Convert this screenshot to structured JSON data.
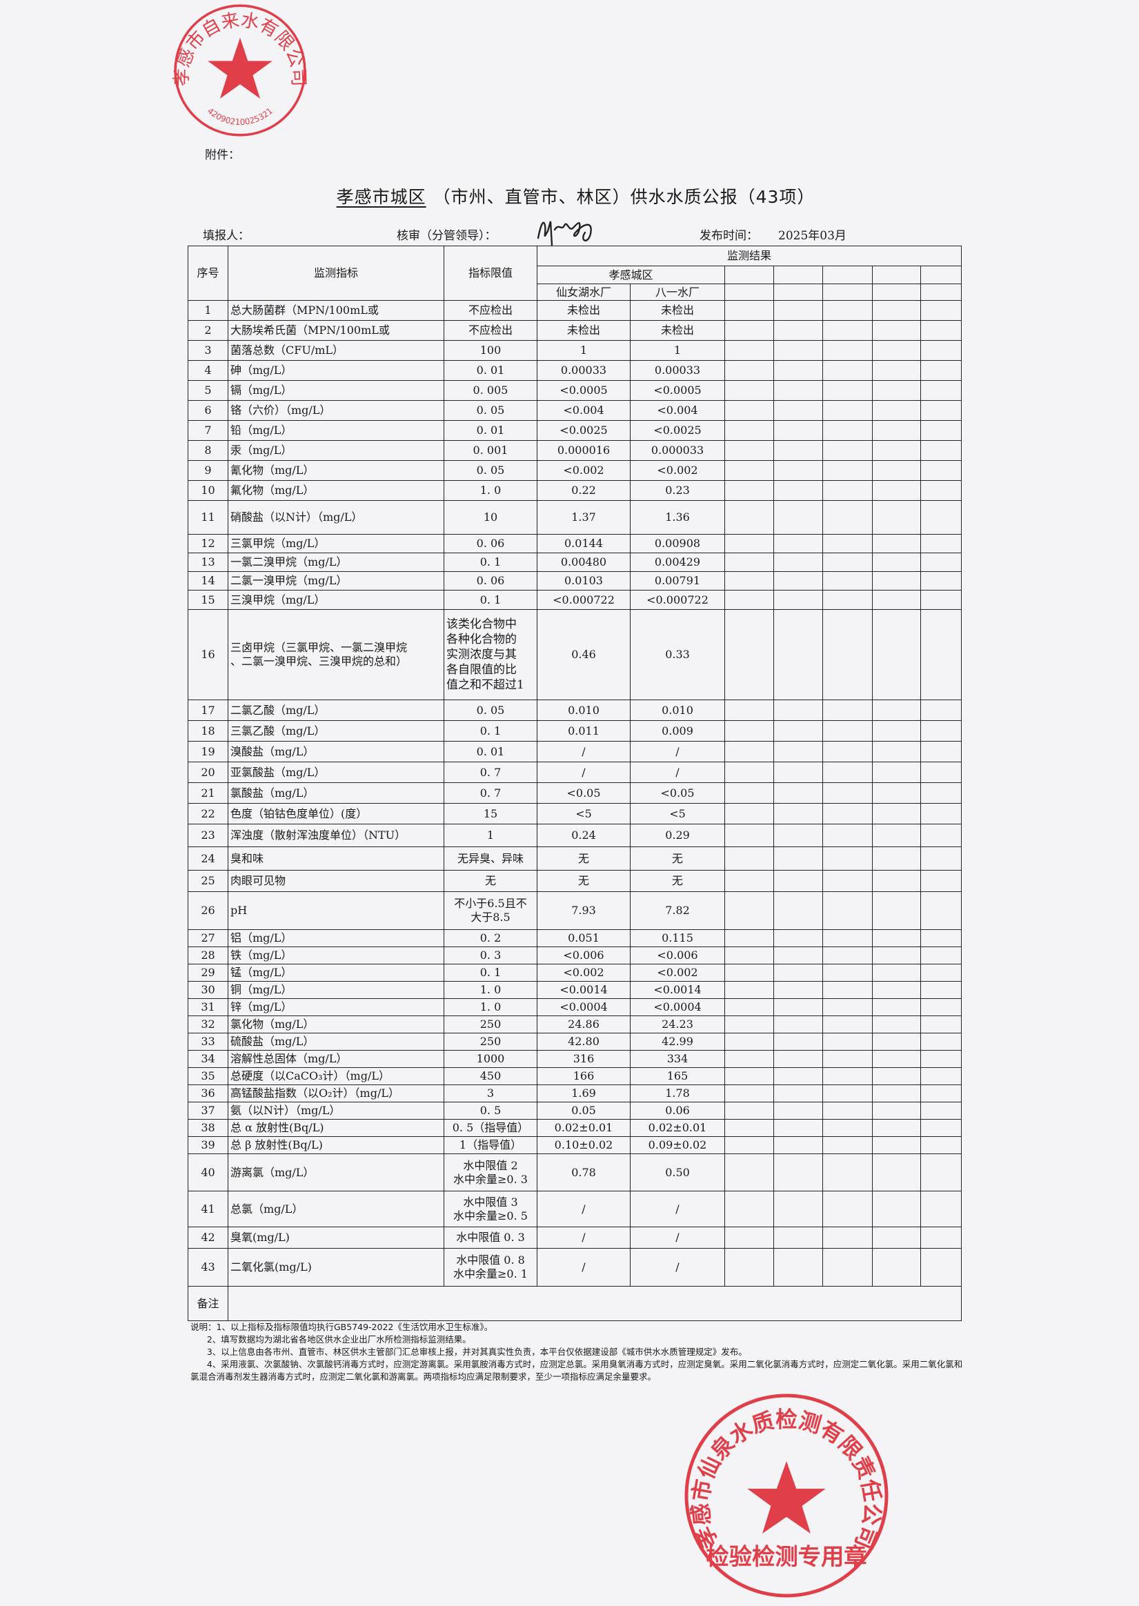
{
  "attachment_label": "附件：",
  "title": {
    "region": "孝感市城区",
    "rest": "（市州、直管市、林区）供水水质公报（43项）"
  },
  "meta": {
    "reporter_label": "填报人：",
    "reviewer_label": "核审（分管领导）：",
    "publish_label": "发布时间：",
    "publish_date": "2025年03月"
  },
  "table": {
    "headers": {
      "seq": "序号",
      "indicator": "监测指标",
      "limit": "指标限值",
      "results": "监测结果",
      "area": "孝感城区",
      "plants": [
        "仙女湖水厂",
        "八一水厂"
      ]
    },
    "rows": [
      {
        "no": "1",
        "indicator": "总大肠菌群（MPN/100mL或",
        "limit": "不应检出",
        "v1": "未检出",
        "v2": "未检出"
      },
      {
        "no": "2",
        "indicator": "大肠埃希氏菌（MPN/100mL或",
        "limit": "不应检出",
        "v1": "未检出",
        "v2": "未检出"
      },
      {
        "no": "3",
        "indicator": "菌落总数（CFU/mL）",
        "limit": "100",
        "v1": "1",
        "v2": "1"
      },
      {
        "no": "4",
        "indicator": "砷（mg/L）",
        "limit": "0. 01",
        "v1": "0.00033",
        "v2": "0.00033"
      },
      {
        "no": "5",
        "indicator": "镉（mg/L）",
        "limit": "0. 005",
        "v1": "<0.0005",
        "v2": "<0.0005"
      },
      {
        "no": "6",
        "indicator": "铬（六价）（mg/L）",
        "limit": "0. 05",
        "v1": "<0.004",
        "v2": "<0.004"
      },
      {
        "no": "7",
        "indicator": "铅（mg/L）",
        "limit": "0. 01",
        "v1": "<0.0025",
        "v2": "<0.0025"
      },
      {
        "no": "8",
        "indicator": "汞（mg/L）",
        "limit": "0. 001",
        "v1": "0.000016",
        "v2": "0.000033"
      },
      {
        "no": "9",
        "indicator": "氰化物（mg/L）",
        "limit": "0. 05",
        "v1": "<0.002",
        "v2": "<0.002"
      },
      {
        "no": "10",
        "indicator": "氟化物（mg/L）",
        "limit": "1. 0",
        "v1": "0.22",
        "v2": "0.23"
      },
      {
        "no": "11",
        "indicator": "硝酸盐（以N计）（mg/L）",
        "limit": "10",
        "v1": "1.37",
        "v2": "1.36"
      },
      {
        "no": "12",
        "indicator": "三氯甲烷（mg/L）",
        "limit": "0. 06",
        "v1": "0.0144",
        "v2": "0.00908"
      },
      {
        "no": "13",
        "indicator": "一氯二溴甲烷（mg/L）",
        "limit": "0. 1",
        "v1": "0.00480",
        "v2": "0.00429"
      },
      {
        "no": "14",
        "indicator": "二氯一溴甲烷（mg/L）",
        "limit": "0. 06",
        "v1": "0.0103",
        "v2": "0.00791"
      },
      {
        "no": "15",
        "indicator": "三溴甲烷（mg/L）",
        "limit": "0. 1",
        "v1": "<0.000722",
        "v2": "<0.000722"
      },
      {
        "no": "16",
        "indicator": "三卤甲烷（三氯甲烷、一氯二溴甲烷\n、二氯一溴甲烷、三溴甲烷的总和）",
        "limit": "该类化合物中\n各种化合物的\n实测浓度与其\n各自限值的比\n值之和不超过1",
        "v1": "0.46",
        "v2": "0.33"
      },
      {
        "no": "17",
        "indicator": "二氯乙酸（mg/L）",
        "limit": "0. 05",
        "v1": "0.010",
        "v2": "0.010"
      },
      {
        "no": "18",
        "indicator": "三氯乙酸（mg/L）",
        "limit": "0. 1",
        "v1": "0.011",
        "v2": "0.009"
      },
      {
        "no": "19",
        "indicator": "溴酸盐（mg/L）",
        "limit": "0. 01",
        "v1": "/",
        "v2": "/"
      },
      {
        "no": "20",
        "indicator": "亚氯酸盐（mg/L）",
        "limit": "0. 7",
        "v1": "/",
        "v2": "/"
      },
      {
        "no": "21",
        "indicator": "氯酸盐（mg/L）",
        "limit": "0. 7",
        "v1": "<0.05",
        "v2": "<0.05"
      },
      {
        "no": "22",
        "indicator": "色度（铂钴色度单位）(度）",
        "limit": "15",
        "v1": "<5",
        "v2": "<5"
      },
      {
        "no": "23",
        "indicator": "浑浊度（散射浑浊度单位）（NTU）",
        "limit": "1",
        "v1": "0.24",
        "v2": "0.29"
      },
      {
        "no": "24",
        "indicator": "臭和味",
        "limit": "无异臭、异味",
        "v1": "无",
        "v2": "无"
      },
      {
        "no": "25",
        "indicator": "肉眼可见物",
        "limit": "无",
        "v1": "无",
        "v2": "无"
      },
      {
        "no": "26",
        "indicator": "pH",
        "limit": "不小于6.5且不\n大于8.5",
        "v1": "7.93",
        "v2": "7.82"
      },
      {
        "no": "27",
        "indicator": "铝（mg/L）",
        "limit": "0. 2",
        "v1": "0.051",
        "v2": "0.115"
      },
      {
        "no": "28",
        "indicator": "铁（mg/L）",
        "limit": "0. 3",
        "v1": "<0.006",
        "v2": "<0.006"
      },
      {
        "no": "29",
        "indicator": "锰（mg/L）",
        "limit": "0. 1",
        "v1": "<0.002",
        "v2": "<0.002"
      },
      {
        "no": "30",
        "indicator": "铜（mg/L）",
        "limit": "1. 0",
        "v1": "<0.0014",
        "v2": "<0.0014"
      },
      {
        "no": "31",
        "indicator": "锌（mg/L）",
        "limit": "1. 0",
        "v1": "<0.0004",
        "v2": "<0.0004"
      },
      {
        "no": "32",
        "indicator": "氯化物（mg/L）",
        "limit": "250",
        "v1": "24.86",
        "v2": "24.23"
      },
      {
        "no": "33",
        "indicator": "硫酸盐（mg/L）",
        "limit": "250",
        "v1": "42.80",
        "v2": "42.99"
      },
      {
        "no": "34",
        "indicator": "溶解性总固体（mg/L）",
        "limit": "1000",
        "v1": "316",
        "v2": "334"
      },
      {
        "no": "35",
        "indicator": "总硬度（以CaCO₃计）（mg/L）",
        "limit": "450",
        "v1": "166",
        "v2": "165"
      },
      {
        "no": "36",
        "indicator": "高锰酸盐指数（以O₂计）（mg/L）",
        "limit": "3",
        "v1": "1.69",
        "v2": "1.78"
      },
      {
        "no": "37",
        "indicator": "氨（以N计）（mg/L）",
        "limit": "0. 5",
        "v1": "0.05",
        "v2": "0.06"
      },
      {
        "no": "38",
        "indicator": "总 α 放射性(Bq/L)",
        "limit": "0. 5（指导值）",
        "v1": "0.02±0.01",
        "v2": "0.02±0.01"
      },
      {
        "no": "39",
        "indicator": "总 β 放射性(Bq/L)",
        "limit": "1（指导值）",
        "v1": "0.10±0.02",
        "v2": "0.09±0.02"
      },
      {
        "no": "40",
        "indicator": "游离氯（mg/L）",
        "limit": "水中限值 2\n水中余量≥0. 3",
        "v1": "0.78",
        "v2": "0.50"
      },
      {
        "no": "41",
        "indicator": "总氯（mg/L）",
        "limit": "水中限值 3\n水中余量≥0. 5",
        "v1": "/",
        "v2": "/"
      },
      {
        "no": "42",
        "indicator": "臭氧(mg/L)",
        "limit": "水中限值 0. 3",
        "v1": "/",
        "v2": "/"
      },
      {
        "no": "43",
        "indicator": "二氧化氯(mg/L)",
        "limit": "水中限值 0. 8\n水中余量≥0. 1",
        "v1": "/",
        "v2": "/"
      }
    ],
    "remarks_label": "备注"
  },
  "notes": [
    "说明：1、以上指标及指标限值均执行GB5749-2022《生活饮用水卫生标准》。",
    "      2、填写数据均为湖北省各地区供水企业出厂水所检测指标监测结果。",
    "      3、以上信息由各市州、直管市、林区供水主管部门汇总审核上报，并对其真实性负责，本平台仅依据建设部《城市供水水质管理规定》发布。",
    "      4、采用液氯、次氯酸钠、次氯酸钙消毒方式时，应测定游离氯。采用氯胺消毒方式时，应测定总氯。采用臭氧消毒方式时，应测定臭氧。采用二氧化氯消毒方式时，应测定二氧化氯。采用二氧化氯和氯混合消毒剂发生器消毒方式时，应测定二氧化氯和游离氯。两项指标均应满足限制要求，至少一项指标应满足余量要求。"
  ],
  "stamps": {
    "supplier": {
      "text": "孝感市自来水有限公司",
      "code": "42090210025321"
    },
    "lab": {
      "text": "孝感市仙泉水质检测有限责任公司",
      "bottom": "检验检测专用章"
    },
    "color": "#e8202e"
  }
}
